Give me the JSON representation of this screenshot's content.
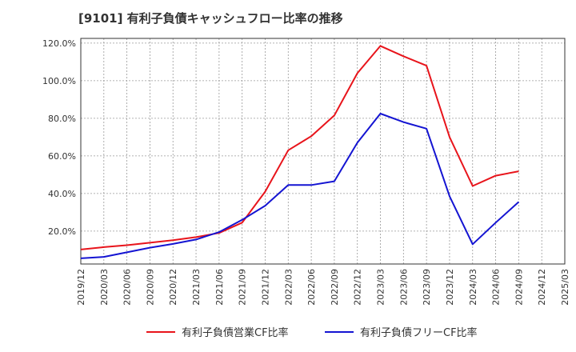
{
  "chart_data": {
    "type": "line",
    "title": "[9101]  有利子負債キャッシュフロー比率の推移",
    "xlabel": "",
    "ylabel": "",
    "x": [
      "2019/12",
      "2020/03",
      "2020/06",
      "2020/09",
      "2020/12",
      "2021/03",
      "2021/06",
      "2021/09",
      "2021/12",
      "2022/03",
      "2022/06",
      "2022/09",
      "2022/12",
      "2023/03",
      "2023/06",
      "2023/09",
      "2023/12",
      "2024/03",
      "2024/06",
      "2024/09",
      "2024/12",
      "2025/03"
    ],
    "y_ticks": [
      "20.0%",
      "40.0%",
      "60.0%",
      "80.0%",
      "100.0%",
      "120.0%"
    ],
    "ylim": [
      2.5,
      122.5
    ],
    "grid": true,
    "legend_position": "bottom",
    "series": [
      {
        "name": "有利子負債営業CF比率",
        "color": "#e8141b",
        "values": [
          10.2,
          11.5,
          12.5,
          13.8,
          15.2,
          16.8,
          19.0,
          24.5,
          41.0,
          63.0,
          70.5,
          81.5,
          104.0,
          118.5,
          113.0,
          108.0,
          70.0,
          44.0,
          49.5,
          51.8,
          null,
          null
        ]
      },
      {
        "name": "有利子負債フリーCF比率",
        "color": "#1414d2",
        "values": [
          5.5,
          6.3,
          8.7,
          11.2,
          13.2,
          15.5,
          19.5,
          26.0,
          33.5,
          44.5,
          44.5,
          46.5,
          67.0,
          82.5,
          78.0,
          74.5,
          38.5,
          13.0,
          24.5,
          35.5,
          null,
          null
        ]
      }
    ]
  }
}
